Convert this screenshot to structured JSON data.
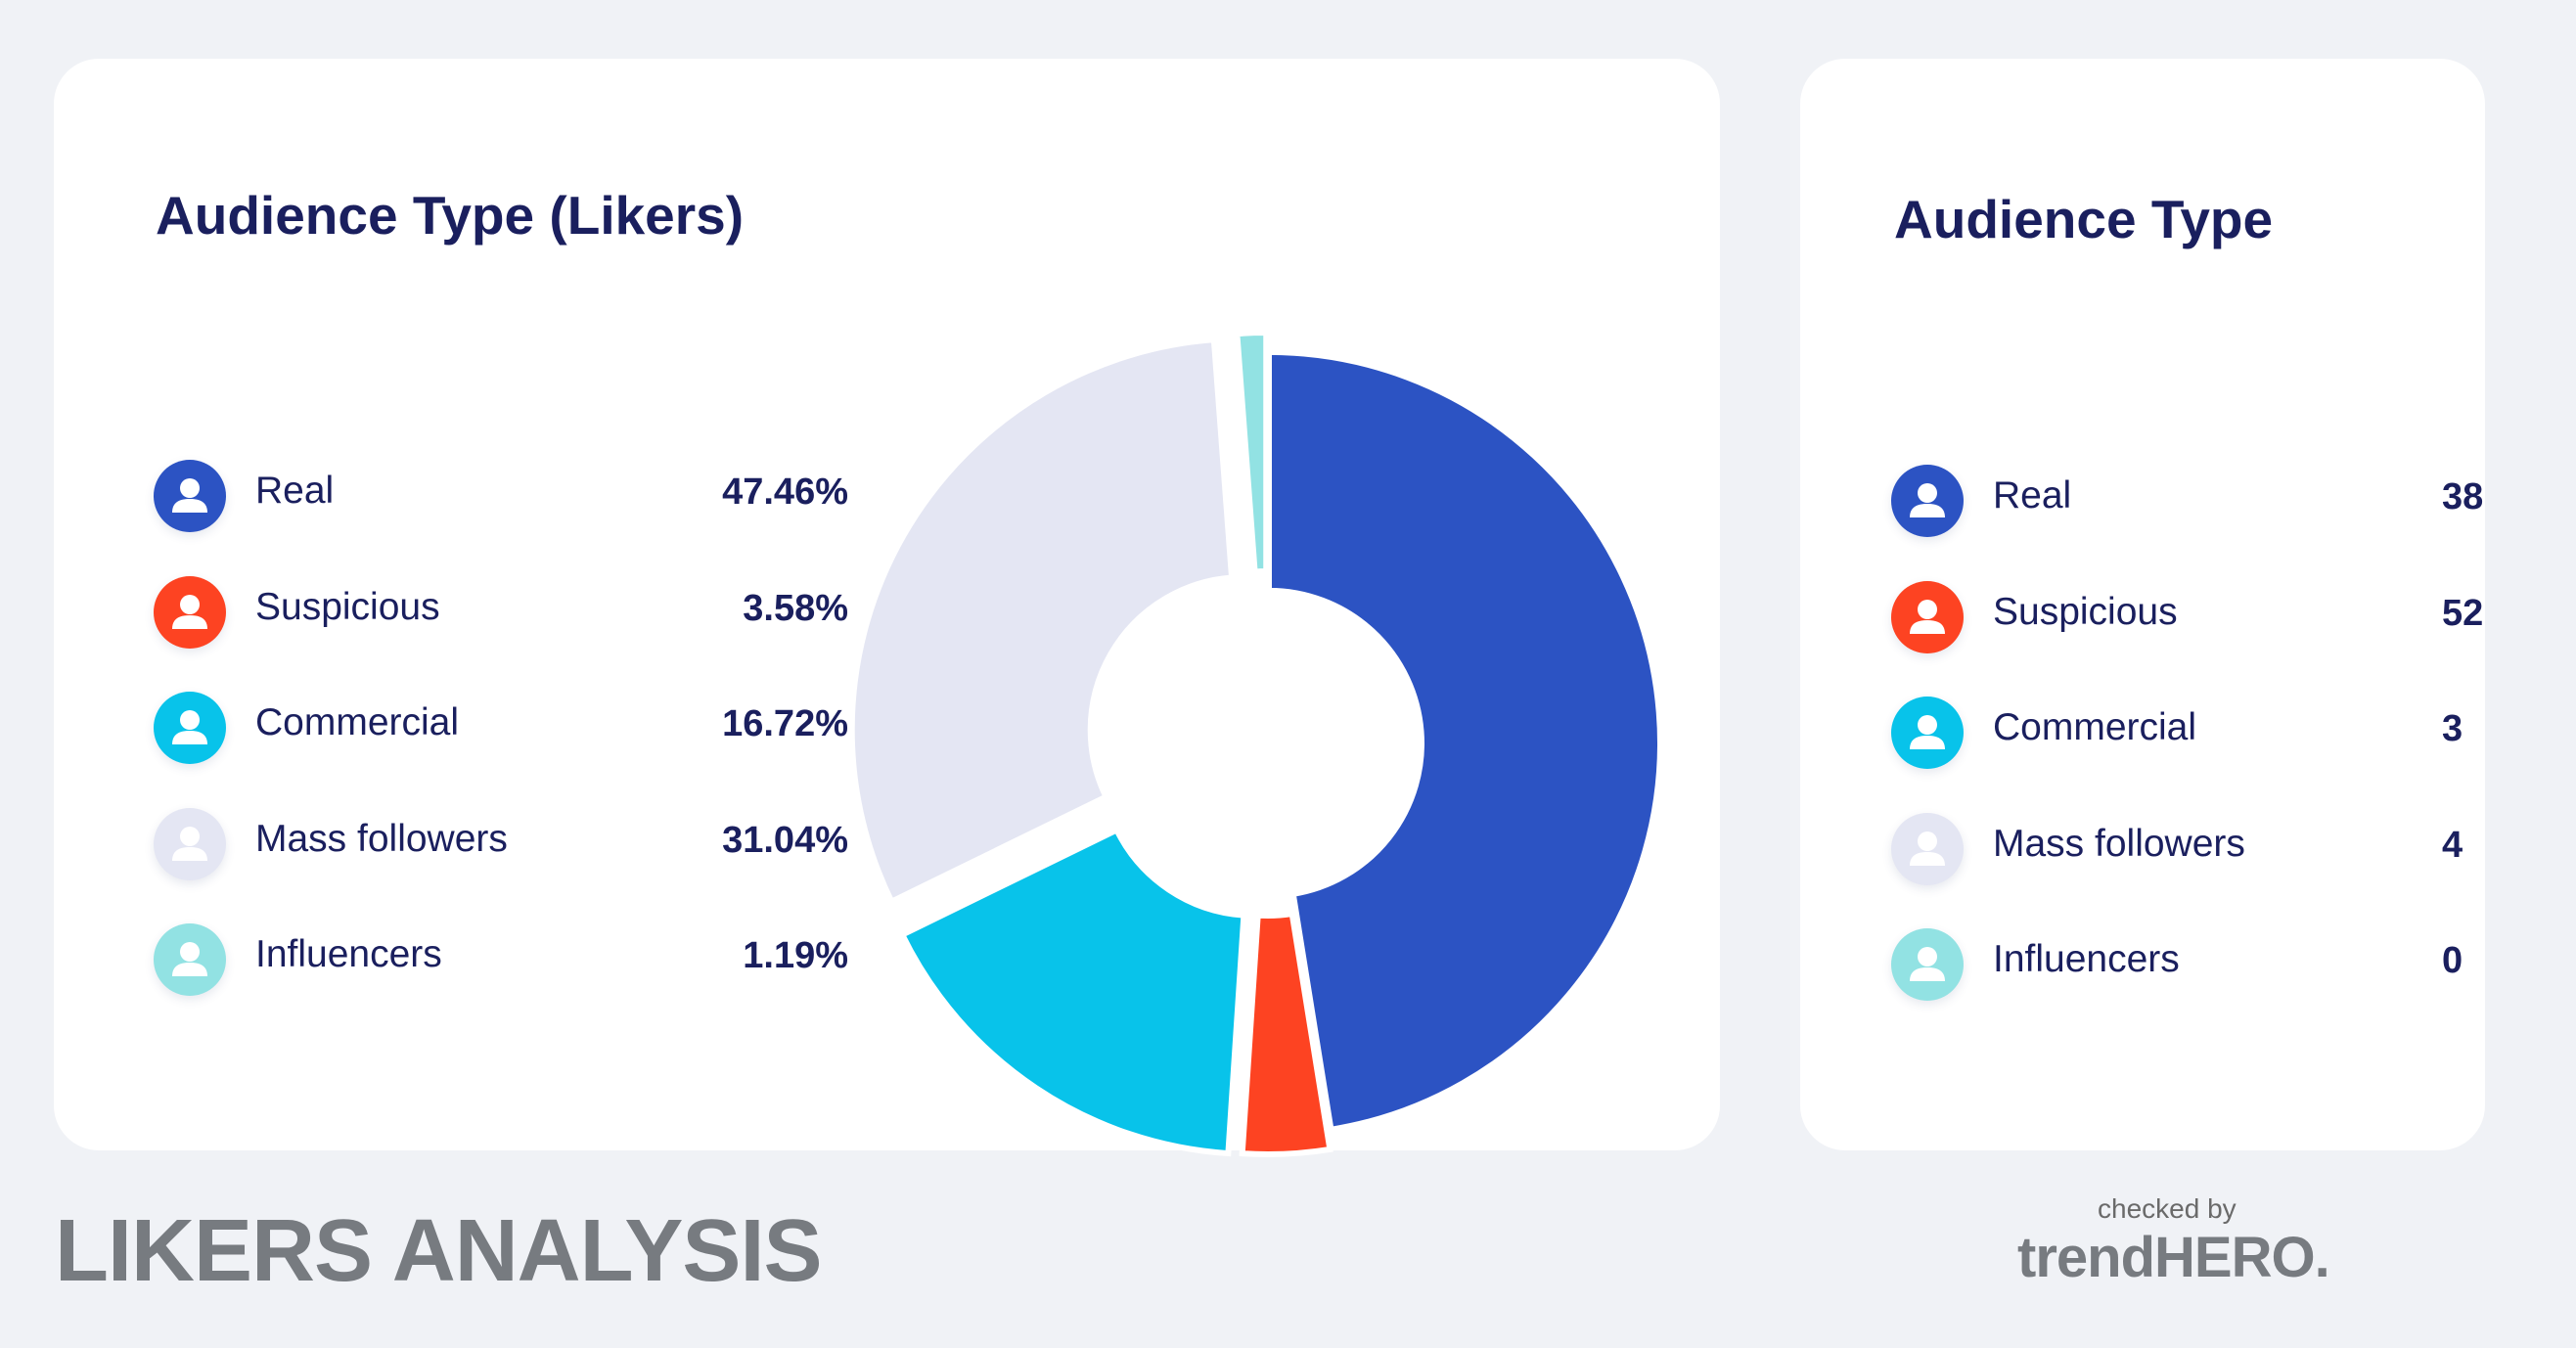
{
  "left_card": {
    "title": "Audience Type (Likers)",
    "items": [
      {
        "label": "Real",
        "value": "47.46%",
        "color": "#2c53c3",
        "icon_fg": "#ffffff"
      },
      {
        "label": "Suspicious",
        "value": "3.58%",
        "color": "#fd4322",
        "icon_fg": "#ffffff"
      },
      {
        "label": "Commercial",
        "value": "16.72%",
        "color": "#08c3ea",
        "icon_fg": "#ffffff"
      },
      {
        "label": "Mass followers",
        "value": "31.04%",
        "color": "#e4e6f3",
        "icon_fg": "#ffffff"
      },
      {
        "label": "Influencers",
        "value": "1.19%",
        "color": "#92e2e3",
        "icon_fg": "#ffffff"
      }
    ]
  },
  "right_card": {
    "title": "Audience Type",
    "items": [
      {
        "label": "Real",
        "value": "38",
        "color": "#2c53c3"
      },
      {
        "label": "Suspicious",
        "value": "52",
        "color": "#fd4322"
      },
      {
        "label": "Commercial",
        "value": "3",
        "color": "#08c3ea"
      },
      {
        "label": "Mass followers",
        "value": "4",
        "color": "#e4e6f3"
      },
      {
        "label": "Influencers",
        "value": "0",
        "color": "#92e2e3"
      }
    ]
  },
  "footer": {
    "title": "LIKERS ANALYSIS",
    "checked_by": "checked by",
    "brand": "trendHERO."
  },
  "chart_data": {
    "type": "pie",
    "title": "Audience Type (Likers)",
    "categories": [
      "Real",
      "Suspicious",
      "Commercial",
      "Mass followers",
      "Influencers"
    ],
    "values": [
      47.46,
      3.58,
      16.72,
      31.04,
      1.19
    ],
    "colors": [
      "#2c53c3",
      "#fd4322",
      "#08c3ea",
      "#e4e6f3",
      "#92e2e3"
    ],
    "legend": "left"
  }
}
